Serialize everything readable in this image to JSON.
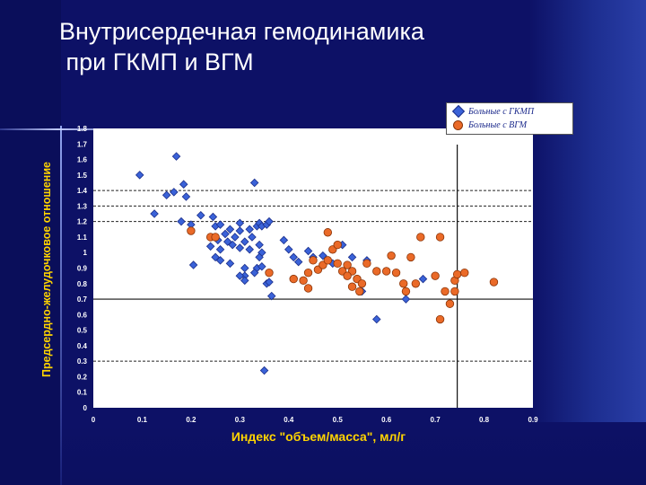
{
  "slide": {
    "title_line1": "Внутрисердечная гемодинамика",
    "title_line2": " при ГКМП и ВГМ"
  },
  "colors": {
    "background": "#0d1166",
    "plot_area": "#ffffff",
    "series_hcm": "#3a62d8",
    "series_lvh": "#ea6a28",
    "axis_text": "#ffffff",
    "xlabel_text": "#ffd400"
  },
  "chart_data": {
    "type": "scatter",
    "title": "",
    "xlabel": "Индекс \"объем/масса\", мл/г",
    "ylabel": "Предсердно-желудочковое отношение",
    "xlim": [
      0,
      0.9
    ],
    "ylim": [
      0,
      1.8
    ],
    "x_ticks": [
      "0",
      "0.1",
      "0.2",
      "0.3",
      "0.4",
      "0.5",
      "0.6",
      "0.7",
      "0.8",
      "0.9"
    ],
    "y_ticks": [
      "0",
      "0.1",
      "0.2",
      "0.3",
      "0.4",
      "0.5",
      "0.6",
      "0.7",
      "0.8",
      "0.9",
      "1",
      "1.1",
      "1.2",
      "1.3",
      "1.4",
      "1.5",
      "1.6",
      "1.7",
      "1.8"
    ],
    "grid": false,
    "legend_position": "top-right",
    "reference_lines": {
      "dashed_horizontal_y": [
        1.4,
        1.3,
        1.2,
        0.3
      ],
      "solid_horizontal_y": 0.7,
      "solid_vertical_x": 0.745
    },
    "series": [
      {
        "name": "Больные с ГКМП",
        "marker": "diamond",
        "color": "#3a62d8",
        "points": [
          [
            0.17,
            1.62
          ],
          [
            0.095,
            1.5
          ],
          [
            0.185,
            1.44
          ],
          [
            0.15,
            1.37
          ],
          [
            0.165,
            1.39
          ],
          [
            0.19,
            1.36
          ],
          [
            0.125,
            1.25
          ],
          [
            0.2,
            1.18
          ],
          [
            0.18,
            1.2
          ],
          [
            0.22,
            1.24
          ],
          [
            0.245,
            1.23
          ],
          [
            0.33,
            1.45
          ],
          [
            0.25,
            1.17
          ],
          [
            0.26,
            1.18
          ],
          [
            0.27,
            1.12
          ],
          [
            0.28,
            1.15
          ],
          [
            0.3,
            1.19
          ],
          [
            0.29,
            1.1
          ],
          [
            0.3,
            1.14
          ],
          [
            0.31,
            1.07
          ],
          [
            0.32,
            1.15
          ],
          [
            0.335,
            1.17
          ],
          [
            0.34,
            1.19
          ],
          [
            0.345,
            1.17
          ],
          [
            0.325,
            1.1
          ],
          [
            0.355,
            1.18
          ],
          [
            0.36,
            1.2
          ],
          [
            0.24,
            1.04
          ],
          [
            0.255,
            1.08
          ],
          [
            0.26,
            1.02
          ],
          [
            0.275,
            1.07
          ],
          [
            0.285,
            1.05
          ],
          [
            0.3,
            1.03
          ],
          [
            0.32,
            1.02
          ],
          [
            0.34,
            1.05
          ],
          [
            0.345,
            1.0
          ],
          [
            0.25,
            0.97
          ],
          [
            0.26,
            0.95
          ],
          [
            0.28,
            0.93
          ],
          [
            0.31,
            0.85
          ],
          [
            0.335,
            0.9
          ],
          [
            0.34,
            0.97
          ],
          [
            0.31,
            0.9
          ],
          [
            0.3,
            0.85
          ],
          [
            0.33,
            0.87
          ],
          [
            0.345,
            0.91
          ],
          [
            0.31,
            0.82
          ],
          [
            0.355,
            0.8
          ],
          [
            0.365,
            0.72
          ],
          [
            0.36,
            0.81
          ],
          [
            0.39,
            1.08
          ],
          [
            0.4,
            1.02
          ],
          [
            0.41,
            0.97
          ],
          [
            0.44,
            1.01
          ],
          [
            0.45,
            0.97
          ],
          [
            0.42,
            0.94
          ],
          [
            0.47,
            0.98
          ],
          [
            0.51,
            1.05
          ],
          [
            0.49,
            0.93
          ],
          [
            0.53,
            0.97
          ],
          [
            0.56,
            0.95
          ],
          [
            0.55,
            0.75
          ],
          [
            0.58,
            0.57
          ],
          [
            0.64,
            0.7
          ],
          [
            0.675,
            0.83
          ],
          [
            0.35,
            0.24
          ],
          [
            0.205,
            0.92
          ]
        ]
      },
      {
        "name": "Больные с ВГМ",
        "marker": "circle",
        "color": "#ea6a28",
        "points": [
          [
            0.2,
            1.14
          ],
          [
            0.24,
            1.1
          ],
          [
            0.25,
            1.1
          ],
          [
            0.36,
            0.87
          ],
          [
            0.41,
            0.83
          ],
          [
            0.43,
            0.82
          ],
          [
            0.44,
            0.87
          ],
          [
            0.45,
            0.95
          ],
          [
            0.44,
            0.77
          ],
          [
            0.46,
            0.89
          ],
          [
            0.47,
            0.92
          ],
          [
            0.48,
            0.95
          ],
          [
            0.49,
            1.02
          ],
          [
            0.48,
            1.13
          ],
          [
            0.5,
            0.93
          ],
          [
            0.51,
            0.88
          ],
          [
            0.5,
            1.05
          ],
          [
            0.52,
            0.92
          ],
          [
            0.53,
            0.88
          ],
          [
            0.52,
            0.85
          ],
          [
            0.54,
            0.83
          ],
          [
            0.55,
            0.8
          ],
          [
            0.53,
            0.78
          ],
          [
            0.545,
            0.75
          ],
          [
            0.56,
            0.93
          ],
          [
            0.58,
            0.88
          ],
          [
            0.6,
            0.88
          ],
          [
            0.61,
            0.98
          ],
          [
            0.62,
            0.87
          ],
          [
            0.635,
            0.8
          ],
          [
            0.64,
            0.75
          ],
          [
            0.65,
            0.97
          ],
          [
            0.66,
            0.8
          ],
          [
            0.67,
            1.1
          ],
          [
            0.7,
            0.85
          ],
          [
            0.71,
            1.1
          ],
          [
            0.72,
            0.75
          ],
          [
            0.73,
            0.67
          ],
          [
            0.74,
            0.82
          ],
          [
            0.74,
            0.75
          ],
          [
            0.745,
            0.86
          ],
          [
            0.76,
            0.87
          ],
          [
            0.71,
            0.57
          ],
          [
            0.82,
            0.81
          ]
        ]
      }
    ]
  }
}
